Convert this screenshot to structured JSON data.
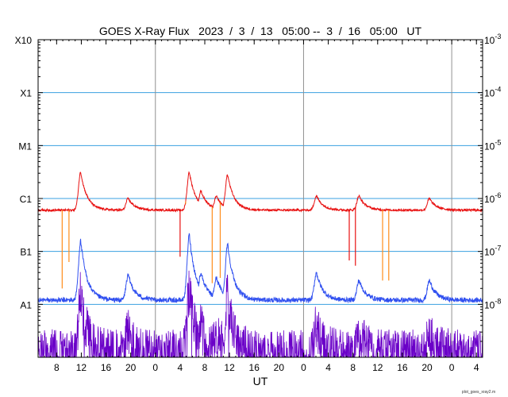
{
  "chart_data": {
    "type": "line",
    "title": "GOES X-Ray Flux   2023  /  3  /  13   05:00 --  3  /  16   05:00   UT",
    "xlabel": "UT",
    "credit": "plot_goes_xray2.m",
    "x_range_hours": [
      0,
      72
    ],
    "x_start_hour_of_day": 5,
    "x_tick_labels": [
      "8",
      "12",
      "16",
      "20",
      "0",
      "4",
      "8",
      "12",
      "16",
      "20",
      "0",
      "4",
      "8",
      "12",
      "16",
      "20",
      "0",
      "4"
    ],
    "x_tick_hours": [
      3,
      7,
      11,
      15,
      19,
      23,
      27,
      31,
      35,
      39,
      43,
      47,
      51,
      55,
      59,
      63,
      67,
      71
    ],
    "day_boundaries_hours": [
      19,
      43,
      67
    ],
    "y_scale": "log",
    "y_range_log10": [
      -9,
      -3
    ],
    "y_left_labels": [
      {
        "text": "A1",
        "log10": -8
      },
      {
        "text": "B1",
        "log10": -7
      },
      {
        "text": "C1",
        "log10": -6
      },
      {
        "text": "M1",
        "log10": -5
      },
      {
        "text": "X1",
        "log10": -4
      },
      {
        "text": "X10",
        "log10": -3
      }
    ],
    "y_right_labels": [
      {
        "base": "10",
        "exp": "-8",
        "log10": -8
      },
      {
        "base": "10",
        "exp": "-7",
        "log10": -7
      },
      {
        "base": "10",
        "exp": "-6",
        "log10": -6
      },
      {
        "base": "10",
        "exp": "-5",
        "log10": -5
      },
      {
        "base": "10",
        "exp": "-4",
        "log10": -4
      },
      {
        "base": "10",
        "exp": "-3",
        "log10": -3
      }
    ],
    "grid": {
      "horizontal": true,
      "day_lines": true
    },
    "colors": {
      "long": "#e81010",
      "long_gaps": "#ff8c1a",
      "short": "#3050f0",
      "short_low": "#6a00c8",
      "grid_h": "#3aa0e0",
      "grid_v": "#909090"
    },
    "series": [
      {
        "key": "long",
        "baseline_log10": -6.22,
        "flares": [
          {
            "t": 6.9,
            "peak": -5.5
          },
          {
            "t": 14.6,
            "peak": -6.0
          },
          {
            "t": 24.5,
            "peak": -5.5
          },
          {
            "t": 26.4,
            "peak": -5.86
          },
          {
            "t": 28.9,
            "peak": -5.96
          },
          {
            "t": 30.7,
            "peak": -5.55
          },
          {
            "t": 45.1,
            "peak": -5.95
          },
          {
            "t": 52.0,
            "peak": -5.95
          },
          {
            "t": 63.4,
            "peak": -6.0
          }
        ],
        "dropouts": [
          {
            "t": 3.9,
            "min": -7.7,
            "color": "long_gaps"
          },
          {
            "t": 5.0,
            "min": -7.2,
            "color": "long_gaps"
          },
          {
            "t": 23.0,
            "min": -7.1,
            "color": "long"
          },
          {
            "t": 23.9,
            "min": -6.1,
            "color": "long_gaps"
          },
          {
            "t": 28.2,
            "min": -7.6,
            "color": "long_gaps"
          },
          {
            "t": 29.5,
            "min": -7.5,
            "color": "long_gaps"
          },
          {
            "t": 50.4,
            "min": -7.17,
            "color": "long"
          },
          {
            "t": 51.4,
            "min": -7.27,
            "color": "long"
          },
          {
            "t": 55.8,
            "min": -7.55,
            "color": "long_gaps"
          },
          {
            "t": 56.8,
            "min": -7.55,
            "color": "long_gaps"
          }
        ]
      },
      {
        "key": "short",
        "baseline_log10": -7.92,
        "flares": [
          {
            "t": 6.9,
            "peak": -6.8
          },
          {
            "t": 14.6,
            "peak": -7.45
          },
          {
            "t": 24.5,
            "peak": -6.68
          },
          {
            "t": 26.4,
            "peak": -7.4
          },
          {
            "t": 28.9,
            "peak": -7.5
          },
          {
            "t": 30.7,
            "peak": -6.85
          },
          {
            "t": 45.1,
            "peak": -7.4
          },
          {
            "t": 52.0,
            "peak": -7.55
          },
          {
            "t": 63.4,
            "peak": -7.55
          }
        ]
      }
    ]
  }
}
